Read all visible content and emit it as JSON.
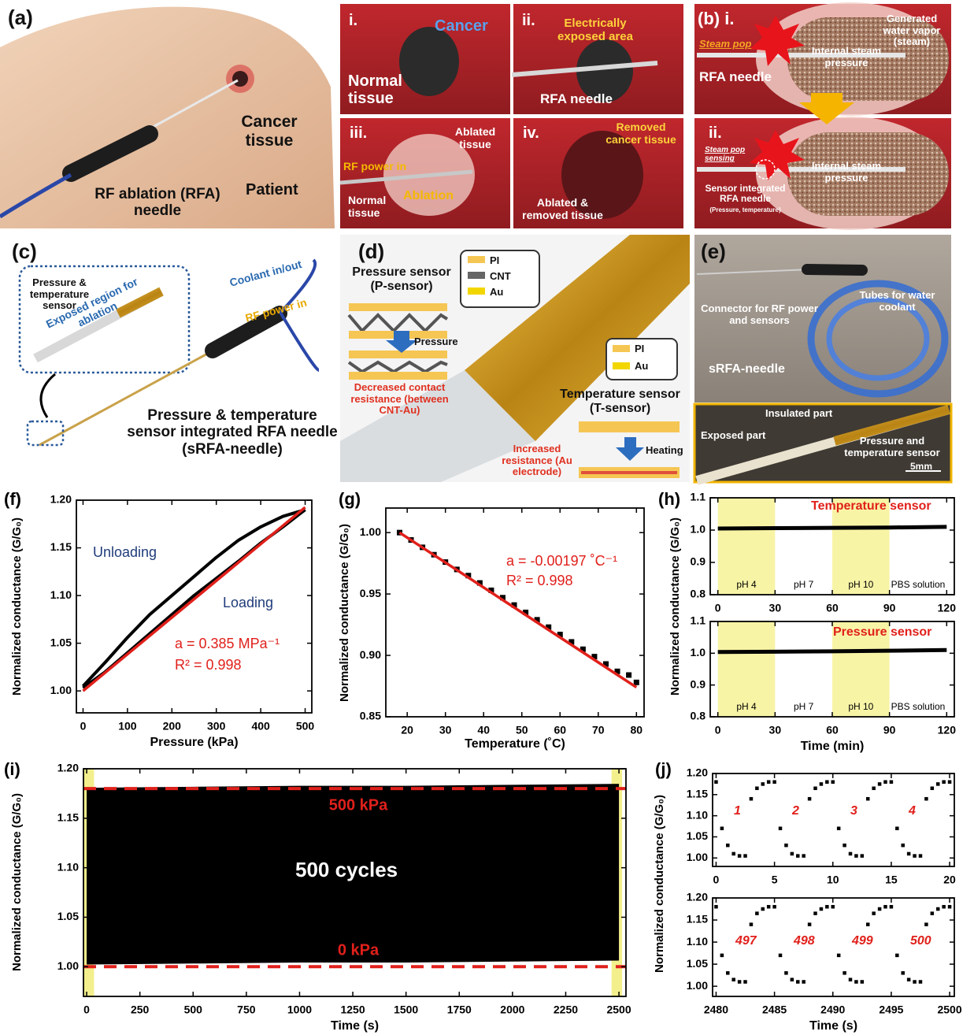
{
  "illustrations": {
    "a": {
      "texts": [
        "(a)",
        "Cancer tissue",
        "RF ablation (RFA) needle",
        "Patient"
      ]
    },
    "i": {
      "texts": [
        "i.",
        "Cancer",
        "Normal tissue"
      ]
    },
    "ii": {
      "texts": [
        "ii.",
        "Electrically exposed area",
        "RFA needle"
      ]
    },
    "iii": {
      "texts": [
        "iii.",
        "Ablated tissue",
        "RF power in",
        "Normal tissue",
        "Ablation"
      ]
    },
    "iv": {
      "texts": [
        "iv.",
        "Removed cancer tissue",
        "Ablated & removed tissue"
      ]
    },
    "b": {
      "texts": [
        "(b) i.",
        "Steam pop",
        "Generated water vapor (steam)",
        "Internal steam pressure",
        "RFA needle",
        "ii.",
        "Steam pop sensing",
        "Internal steam pressure",
        "Sensor integrated RFA needle",
        "(Pressure, temperature)"
      ]
    },
    "c": {
      "texts": [
        "(c)",
        "Pressure & temperature sensor",
        "Exposed region for ablation",
        "Coolant in/out",
        "RF power in",
        "Pressure & temperature sensor integrated RFA needle (sRFA-needle)"
      ]
    },
    "d": {
      "texts": [
        "(d)",
        "Pressure sensor (P-sensor)",
        "PI",
        "CNT",
        "Au",
        "Pressure",
        "Decreased contact resistance (between CNT-Au)",
        "PI",
        "Au",
        "Temperature sensor (T-sensor)",
        "Heating",
        "Increased resistance (Au electrode)"
      ]
    },
    "e": {
      "texts": [
        "(e)",
        "Connector for RF power and sensors",
        "Tubes for water coolant",
        "sRFA-needle",
        "Insulated part",
        "Exposed part",
        "Pressure and temperature sensor",
        "5mm"
      ]
    }
  },
  "chart_data": [
    {
      "type": "line",
      "panel_label": "(f)",
      "xlabel": "Pressure (kPa)",
      "ylabel": "Normalized conductance (G/G₀)",
      "xlim": [
        -15,
        515
      ],
      "xticks": [
        0,
        100,
        200,
        300,
        400,
        500
      ],
      "ylim": [
        0.977,
        1.2
      ],
      "yticks": [
        {
          "value": 1,
          "label": "1.00"
        },
        1.05,
        {
          "value": 1.1,
          "label": "1.10"
        },
        1.15,
        {
          "value": 1.2,
          "label": "1.20"
        }
      ],
      "series": [
        {
          "name": "Unloading",
          "color": "#000000",
          "mode": "line",
          "width": 4,
          "x": [
            0,
            50,
            100,
            150,
            200,
            250,
            300,
            350,
            400,
            450,
            500
          ],
          "values": [
            1.005,
            1.03,
            1.056,
            1.08,
            1.1,
            1.12,
            1.14,
            1.158,
            1.172,
            1.183,
            1.19
          ]
        },
        {
          "name": "Loading",
          "color": "#000000",
          "mode": "line",
          "width": 4,
          "x": [
            0,
            50,
            100,
            150,
            200,
            250,
            300,
            350,
            400,
            450,
            500
          ],
          "values": [
            1.003,
            1.02,
            1.04,
            1.06,
            1.08,
            1.1,
            1.118,
            1.136,
            1.155,
            1.172,
            1.19
          ]
        },
        {
          "color": "#e0201b",
          "mode": "line",
          "width": 3.5,
          "x": [
            0,
            500
          ],
          "values": [
            1.0,
            1.1925
          ]
        }
      ],
      "annotations": [
        "a = 0.385 MPa⁻¹",
        "R² = 0.998"
      ]
    },
    {
      "type": "scatter",
      "panel_label": "(g)",
      "xlabel": "Temperature (˚C)",
      "ylabel": "Normalized conductance (G/G₀)",
      "xlim": [
        14.4,
        82
      ],
      "xticks": [
        20,
        30,
        40,
        50,
        60,
        70,
        80
      ],
      "ylim": [
        0.85,
        1.02
      ],
      "yticks": [
        0.85,
        {
          "value": 0.9,
          "label": "0.90"
        },
        0.95,
        {
          "value": 1,
          "label": "1.00"
        }
      ],
      "series": [
        {
          "color": "#000000",
          "mode": "markers",
          "x": [
            18,
            21,
            24,
            27,
            30,
            33,
            36,
            39,
            42,
            45,
            48,
            51,
            54,
            57,
            60,
            63,
            66,
            69,
            72,
            75,
            78,
            80
          ],
          "values": [
            1.0,
            0.994,
            0.988,
            0.982,
            0.976,
            0.97,
            0.965,
            0.959,
            0.953,
            0.947,
            0.941,
            0.935,
            0.929,
            0.923,
            0.917,
            0.911,
            0.905,
            0.899,
            0.893,
            0.887,
            0.884,
            0.878
          ]
        },
        {
          "color": "#e0201b",
          "mode": "line",
          "width": 3.5,
          "x": [
            18,
            80
          ],
          "values": [
            1.0,
            0.874
          ]
        }
      ],
      "annotations": [
        "a = -0.00197 ˚C⁻¹",
        "R² = 0.998"
      ]
    },
    {
      "type": "line",
      "panel_label": "(h)",
      "ylabel": "Normalized conductance (G/G₀)",
      "xlim": [
        -4,
        124
      ],
      "xticks": [
        0,
        30,
        60,
        90,
        120
      ],
      "ylim": [
        0.8,
        1.1
      ],
      "yticks": [
        0.8,
        0.9,
        {
          "value": 1,
          "label": "1.0"
        },
        1.1
      ],
      "band_color": "#f8f4a6",
      "conditions": [
        {
          "label": "pH 4",
          "range": [
            0,
            30
          ],
          "shaded": true
        },
        {
          "label": "pH 7",
          "range": [
            30,
            60
          ],
          "shaded": false
        },
        {
          "label": "pH 10",
          "range": [
            60,
            90
          ],
          "shaded": true
        },
        {
          "label": "PBS solution",
          "range": [
            90,
            120
          ],
          "shaded": false
        }
      ],
      "series": [
        {
          "color": "#000000",
          "mode": "line",
          "width": 5,
          "x": [
            0,
            30,
            60,
            90,
            120
          ],
          "values": [
            1.005,
            1.006,
            1.007,
            1.008,
            1.01
          ]
        }
      ],
      "annotations": [
        "Temperature sensor"
      ]
    },
    {
      "type": "line",
      "xlabel": "Time (min)",
      "xlim": [
        -4,
        124
      ],
      "xticks": [
        0,
        30,
        60,
        90,
        120
      ],
      "ylim": [
        0.8,
        1.1
      ],
      "yticks": [
        0.8,
        0.9,
        {
          "value": 1,
          "label": "1.0"
        },
        1.1
      ],
      "band_color": "#f8f4a6",
      "conditions": [
        {
          "label": "pH 4",
          "range": [
            0,
            30
          ],
          "shaded": true
        },
        {
          "label": "pH 7",
          "range": [
            30,
            60
          ],
          "shaded": false
        },
        {
          "label": "pH 10",
          "range": [
            60,
            90
          ],
          "shaded": true
        },
        {
          "label": "PBS solution",
          "range": [
            90,
            120
          ],
          "shaded": false
        }
      ],
      "series": [
        {
          "color": "#000000",
          "mode": "line",
          "width": 5,
          "x": [
            0,
            30,
            60,
            90,
            120
          ],
          "values": [
            1.004,
            1.005,
            1.006,
            1.008,
            1.01
          ]
        }
      ],
      "annotations": [
        "Pressure sensor"
      ]
    },
    {
      "type": "line",
      "panel_label": "(i)",
      "xlabel": "Time (s)",
      "ylabel": "Normalized conductance (G/G₀)",
      "xlim": [
        -15,
        2533
      ],
      "xticks": [
        0,
        250,
        500,
        750,
        1000,
        1250,
        1500,
        1750,
        2000,
        2250,
        2500
      ],
      "ylim": [
        0.97,
        1.2
      ],
      "yticks": [
        {
          "value": 1,
          "label": "1.00"
        },
        1.05,
        {
          "value": 1.1,
          "label": "1.10"
        },
        1.15,
        {
          "value": 1.2,
          "label": "1.20"
        }
      ],
      "fill_between": true,
      "fill_color": "#000000",
      "highlight_color": "#f3ef8c",
      "highlights": [
        [
          0,
          20
        ],
        [
          2480,
          2500
        ]
      ],
      "reference_lines": [
        {
          "value": 1.18,
          "label": "500 kPa"
        },
        {
          "value": 1.0,
          "label": "0 kPa"
        }
      ],
      "reference_color": "#e0201b",
      "series": [
        {
          "color": "#000000",
          "mode": "line",
          "width": 2,
          "x": [
            0,
            500,
            1000,
            1500,
            2000,
            2500
          ],
          "values": [
            1.18,
            1.181,
            1.182,
            1.182,
            1.183,
            1.184
          ]
        },
        {
          "color": "#000000",
          "mode": "line",
          "width": 2,
          "x": [
            0,
            500,
            1000,
            1500,
            2000,
            2500
          ],
          "values": [
            1.003,
            1.004,
            1.005,
            1.005,
            1.006,
            1.007
          ]
        }
      ],
      "annotations": [
        "500 cycles"
      ]
    },
    {
      "type": "scatter",
      "panel_label": "(j)",
      "ylabel": "Normalized conductance (G/G₀)",
      "xlim": [
        -0.3,
        20.4
      ],
      "xticks": [
        0,
        5,
        10,
        15,
        20
      ],
      "ylim": [
        0.98,
        1.2
      ],
      "yticks": [
        {
          "value": 1,
          "label": "1.00"
        },
        1.05,
        {
          "value": 1.1,
          "label": "1.10"
        },
        1.15,
        {
          "value": 1.2,
          "label": "1.20"
        }
      ],
      "series": [
        {
          "color": "#000000",
          "mode": "markers",
          "x": [
            0,
            0.5,
            1,
            1.5,
            2,
            2.5,
            3,
            3.5,
            4,
            4.5,
            5,
            5.5,
            6,
            6.5,
            7,
            7.5,
            8,
            8.5,
            9,
            9.5,
            10,
            10.5,
            11,
            11.5,
            12,
            12.5,
            13,
            13.5,
            14,
            14.5,
            15,
            15.5,
            16,
            16.5,
            17,
            17.5,
            18,
            18.5,
            19,
            19.5,
            20
          ],
          "values": [
            1.18,
            1.07,
            1.03,
            1.01,
            1.005,
            1.005,
            1.14,
            1.165,
            1.175,
            1.18,
            1.18,
            1.07,
            1.03,
            1.01,
            1.005,
            1.005,
            1.14,
            1.165,
            1.175,
            1.18,
            1.18,
            1.07,
            1.03,
            1.01,
            1.005,
            1.005,
            1.14,
            1.165,
            1.175,
            1.18,
            1.18,
            1.07,
            1.03,
            1.01,
            1.005,
            1.005,
            1.14,
            1.165,
            1.175,
            1.18,
            1.18
          ]
        }
      ],
      "annotations": [
        "1",
        "2",
        "3",
        "4"
      ]
    },
    {
      "type": "scatter",
      "xlabel": "Time (s)",
      "xlim": [
        2479.7,
        2500.4
      ],
      "xticks": [
        2480,
        2485,
        2490,
        2495,
        2500
      ],
      "ylim": [
        0.977,
        1.2
      ],
      "yticks": [
        {
          "value": 1,
          "label": "1.00"
        },
        1.05,
        {
          "value": 1.1,
          "label": "1.10"
        },
        1.15,
        {
          "value": 1.2,
          "label": "1.20"
        }
      ],
      "series": [
        {
          "color": "#000000",
          "mode": "markers",
          "x": [
            2480,
            2480.5,
            2481,
            2481.5,
            2482,
            2482.5,
            2483,
            2483.5,
            2484,
            2484.5,
            2485,
            2485.5,
            2486,
            2486.5,
            2487,
            2487.5,
            2488,
            2488.5,
            2489,
            2489.5,
            2490,
            2490.5,
            2491,
            2491.5,
            2492,
            2492.5,
            2493,
            2493.5,
            2494,
            2494.5,
            2495,
            2495.5,
            2496,
            2496.5,
            2497,
            2497.5,
            2498,
            2498.5,
            2499,
            2499.5,
            2500
          ],
          "values": [
            1.18,
            1.07,
            1.03,
            1.015,
            1.01,
            1.01,
            1.14,
            1.165,
            1.175,
            1.18,
            1.18,
            1.07,
            1.03,
            1.015,
            1.01,
            1.01,
            1.14,
            1.165,
            1.175,
            1.18,
            1.18,
            1.07,
            1.03,
            1.015,
            1.01,
            1.01,
            1.14,
            1.165,
            1.175,
            1.18,
            1.18,
            1.07,
            1.03,
            1.015,
            1.01,
            1.01,
            1.14,
            1.165,
            1.175,
            1.18,
            1.18
          ]
        }
      ],
      "annotations": [
        "497",
        "498",
        "499",
        "500"
      ]
    }
  ]
}
